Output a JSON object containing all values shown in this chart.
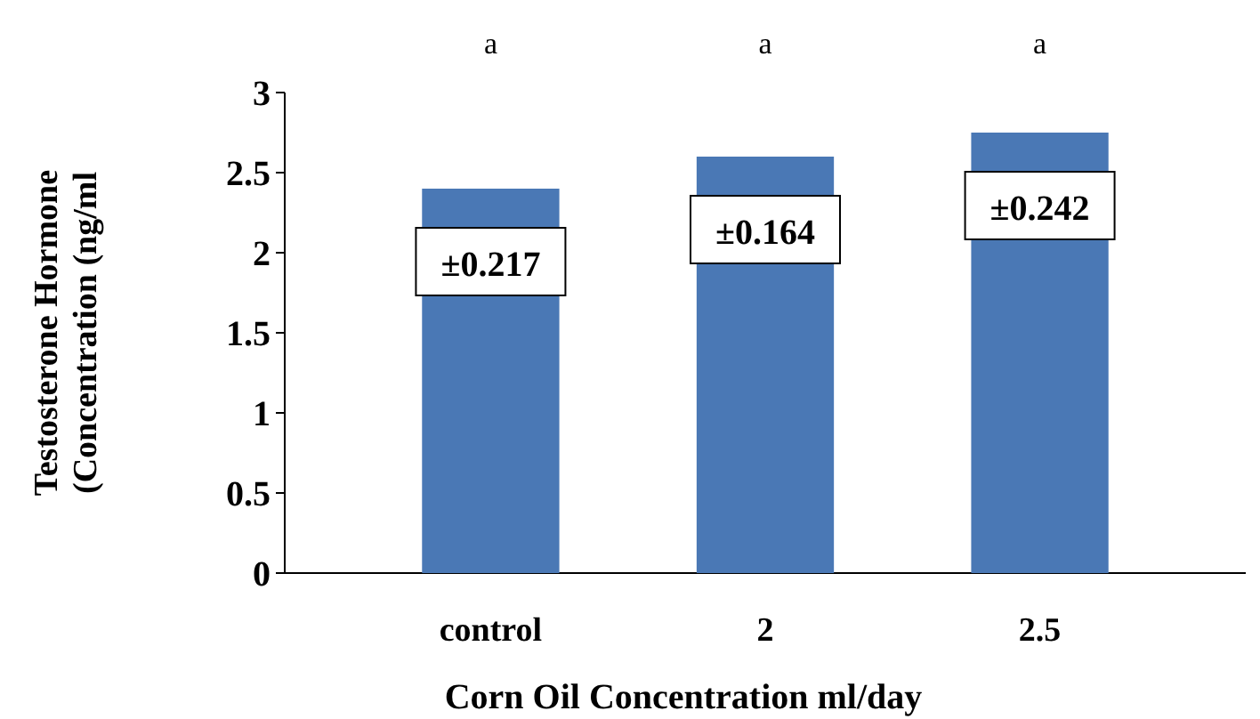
{
  "chart_data": {
    "type": "bar",
    "xlabel": "Corn Oil Concentration ml/day",
    "ylabel": "Testosterone Hormone\n(Concentration (ng/ml",
    "categories": [
      "control",
      "2",
      "2.5"
    ],
    "values": [
      2.4,
      2.6,
      2.75
    ],
    "color": "#4a78b5",
    "ylim": [
      0,
      3
    ],
    "yticks": [
      0,
      0.5,
      1,
      1.5,
      2,
      2.5,
      3
    ],
    "grid": false,
    "annotations": [
      "±0.217",
      "±0.164",
      "±0.242",
      "a",
      "a",
      "a"
    ]
  }
}
